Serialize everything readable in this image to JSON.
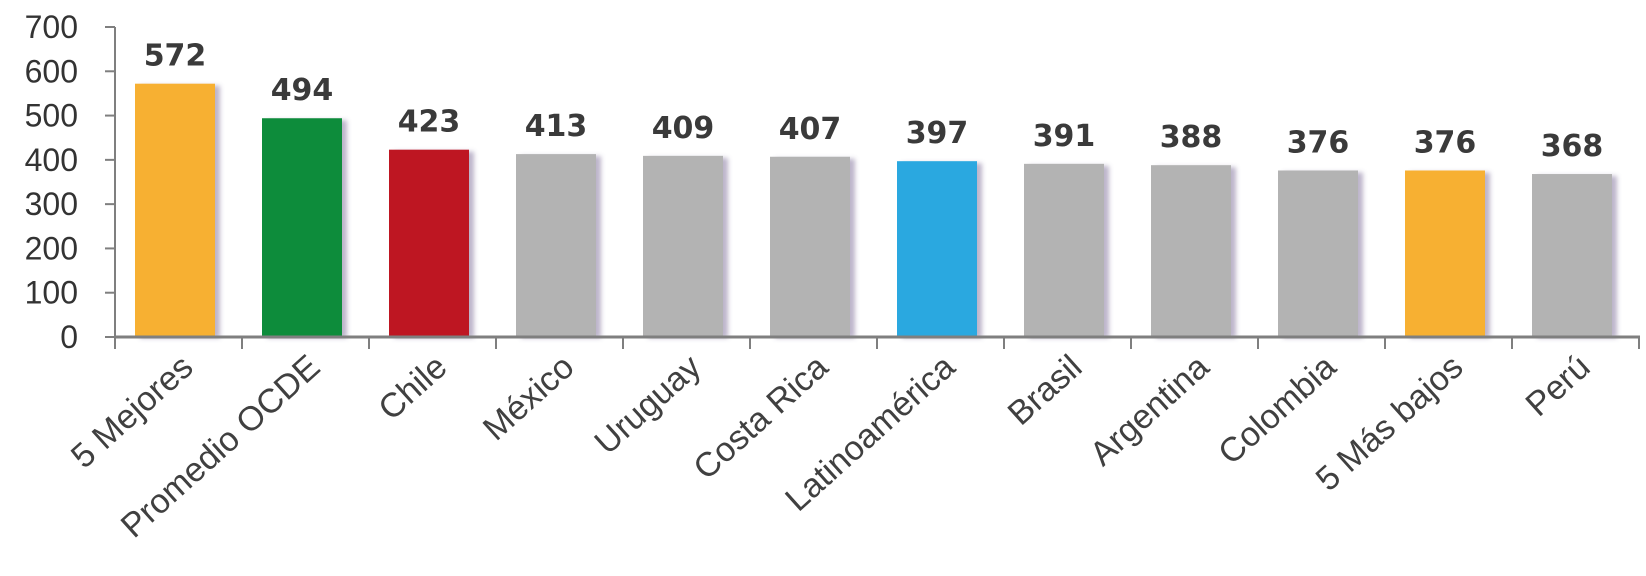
{
  "chart_data": {
    "type": "bar",
    "title": "",
    "xlabel": "",
    "ylabel": "",
    "ylim": [
      0,
      700
    ],
    "yticks": [
      0,
      100,
      200,
      300,
      400,
      500,
      600,
      700
    ],
    "grid": false,
    "legend": "none",
    "categories": [
      "5 Mejores",
      "Promedio OCDE",
      "Chile",
      "México",
      "Uruguay",
      "Costa Rica",
      "Latinoamérica",
      "Brasil",
      "Argentina",
      "Colombia",
      "5 Más bajos",
      "Perú"
    ],
    "values": [
      572,
      494,
      423,
      413,
      409,
      407,
      397,
      391,
      388,
      376,
      376,
      368
    ],
    "data_labels": [
      "572",
      "494",
      "423",
      "413",
      "409",
      "407",
      "397",
      "391",
      "388",
      "376",
      "376",
      "368"
    ],
    "bar_colors": [
      "#F7B033",
      "#0F8C3B",
      "#BE1623",
      "#B3B3B3",
      "#B3B3B3",
      "#B3B3B3",
      "#29A8E0",
      "#B3B3B3",
      "#B3B3B3",
      "#B3B3B3",
      "#F7B033",
      "#B3B3B3"
    ],
    "axis_color": "#7F7F7F"
  }
}
